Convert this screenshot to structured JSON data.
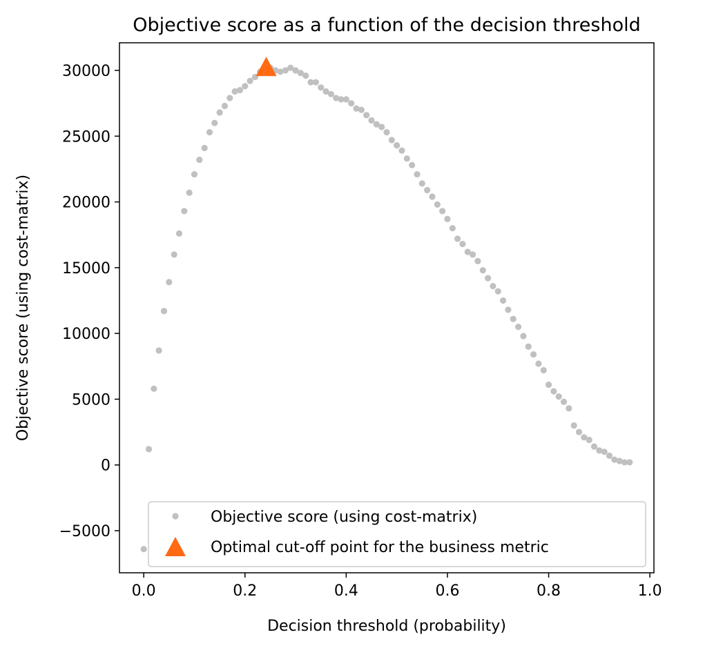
{
  "chart_data": {
    "type": "scatter",
    "title": "Objective score as a function of the decision threshold",
    "xlabel": "Decision threshold (probability)",
    "ylabel": "Objective score (using cost-matrix)",
    "xlim": [
      -0.048,
      1.008
    ],
    "ylim": [
      -8200,
      32100
    ],
    "xticks": [
      0.0,
      0.2,
      0.4,
      0.6,
      0.8,
      1.0
    ],
    "xtick_labels": [
      "0.0",
      "0.2",
      "0.4",
      "0.6",
      "0.8",
      "1.0"
    ],
    "yticks": [
      -5000,
      0,
      5000,
      10000,
      15000,
      20000,
      25000,
      30000
    ],
    "ytick_labels": [
      "−5000",
      "0",
      "5000",
      "10000",
      "15000",
      "20000",
      "25000",
      "30000"
    ],
    "grid": false,
    "legend_position": "lower-right",
    "series": [
      {
        "name": "Objective score (using cost-matrix)",
        "marker": "circle",
        "color": "#c0c0c0",
        "x": [
          0.0,
          0.01,
          0.02,
          0.03,
          0.04,
          0.05,
          0.06,
          0.07,
          0.08,
          0.09,
          0.1,
          0.11,
          0.12,
          0.13,
          0.14,
          0.15,
          0.16,
          0.17,
          0.18,
          0.19,
          0.2,
          0.21,
          0.22,
          0.23,
          0.24,
          0.25,
          0.26,
          0.27,
          0.28,
          0.29,
          0.3,
          0.31,
          0.32,
          0.33,
          0.34,
          0.35,
          0.36,
          0.37,
          0.38,
          0.39,
          0.4,
          0.41,
          0.42,
          0.43,
          0.44,
          0.45,
          0.46,
          0.47,
          0.48,
          0.49,
          0.5,
          0.51,
          0.52,
          0.53,
          0.54,
          0.55,
          0.56,
          0.57,
          0.58,
          0.59,
          0.6,
          0.61,
          0.62,
          0.63,
          0.64,
          0.65,
          0.66,
          0.67,
          0.68,
          0.69,
          0.7,
          0.71,
          0.72,
          0.73,
          0.74,
          0.75,
          0.76,
          0.77,
          0.78,
          0.79,
          0.8,
          0.81,
          0.82,
          0.83,
          0.84,
          0.85,
          0.86,
          0.87,
          0.88,
          0.89,
          0.9,
          0.91,
          0.92,
          0.93,
          0.94,
          0.95,
          0.96
        ],
        "y": [
          -6400,
          1200,
          5800,
          8700,
          11700,
          13900,
          16000,
          17600,
          19300,
          20700,
          22100,
          23200,
          24100,
          25300,
          26000,
          26800,
          27300,
          27900,
          28400,
          28500,
          28800,
          29200,
          29500,
          29900,
          30100,
          30200,
          30000,
          29900,
          30000,
          30200,
          30000,
          29800,
          29600,
          29100,
          29100,
          28700,
          28400,
          28200,
          27900,
          27800,
          27800,
          27500,
          27100,
          27000,
          26600,
          26200,
          25900,
          25700,
          25300,
          24700,
          24300,
          23900,
          23300,
          22800,
          22100,
          21400,
          20900,
          20400,
          19800,
          19300,
          18700,
          18000,
          17200,
          16800,
          16200,
          16000,
          15500,
          14800,
          14200,
          13600,
          13200,
          12500,
          11800,
          11100,
          10500,
          9800,
          9000,
          8400,
          7700,
          7200,
          6100,
          5600,
          5200,
          4800,
          4300,
          3000,
          2500,
          2100,
          1900,
          1400,
          1100,
          1000,
          700,
          400,
          300,
          200,
          200
        ]
      },
      {
        "name": "Optimal cut-off point for the business metric",
        "marker": "triangle",
        "color": "#ff6a13",
        "x": [
          0.242
        ],
        "y": [
          30300
        ]
      }
    ]
  }
}
